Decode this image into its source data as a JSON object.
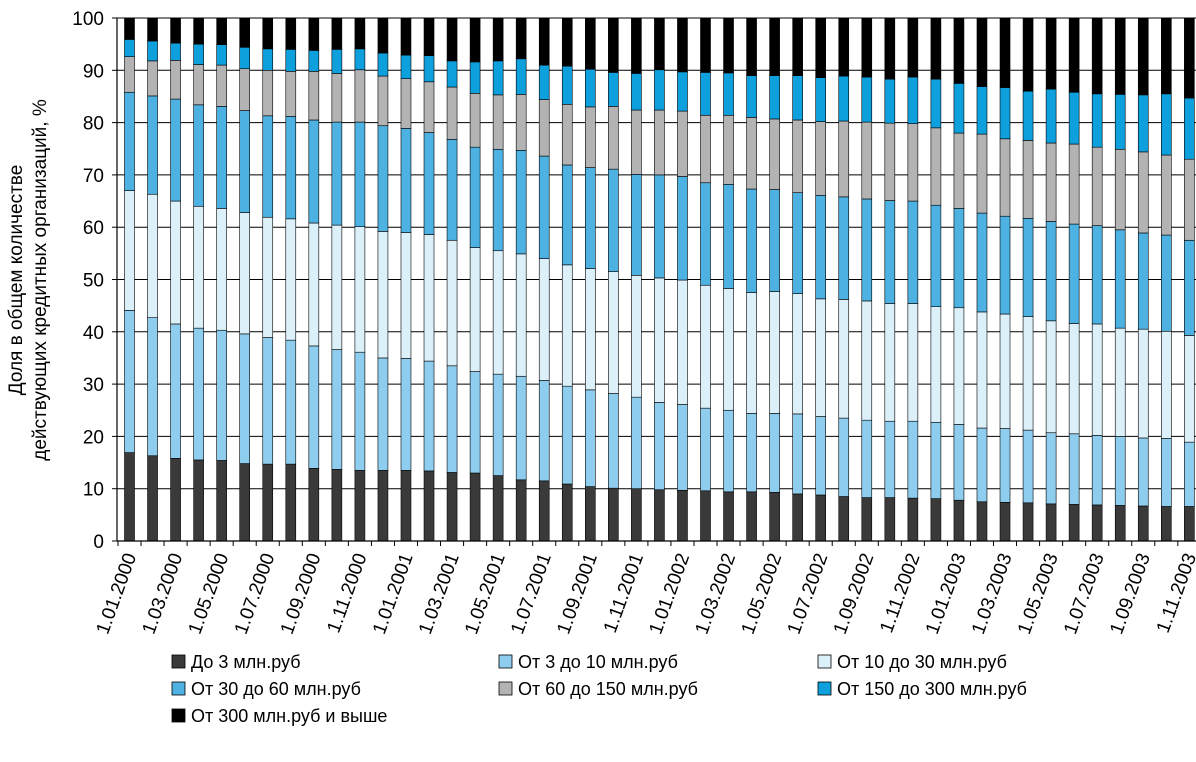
{
  "chart_data": {
    "type": "bar",
    "stacked": true,
    "title": "",
    "ylabel_lines": [
      "Доля в общем количестве",
      "действующих кредитных организаций, %"
    ],
    "ylim": [
      0,
      100
    ],
    "y_ticks": [
      "0",
      "10",
      "20",
      "30",
      "40",
      "50",
      "60",
      "70",
      "80",
      "90",
      "100"
    ],
    "grid": "horizontal",
    "legend_position": "bottom",
    "x_tick_labels": [
      "1.01.2000",
      "1.03.2000",
      "1.05.2000",
      "1.07.2000",
      "1.09.2000",
      "1.11.2000",
      "1.01.2001",
      "1.03.2001",
      "1.05.2001",
      "1.07.2001",
      "1.09.2001",
      "1.11.2001",
      "1.01.2002",
      "1.03.2002",
      "1.05.2002",
      "1.07.2002",
      "1.09.2002",
      "1.11.2002",
      "1.01.2003",
      "1.03.2003",
      "1.05.2003",
      "1.07.2003",
      "1.09.2003",
      "1.11.2003"
    ],
    "categories": [
      "1.01.2000",
      "1.02.2000",
      "1.03.2000",
      "1.04.2000",
      "1.05.2000",
      "1.06.2000",
      "1.07.2000",
      "1.08.2000",
      "1.09.2000",
      "1.10.2000",
      "1.11.2000",
      "1.12.2000",
      "1.01.2001",
      "1.02.2001",
      "1.03.2001",
      "1.04.2001",
      "1.05.2001",
      "1.06.2001",
      "1.07.2001",
      "1.08.2001",
      "1.09.2001",
      "1.10.2001",
      "1.11.2001",
      "1.12.2001",
      "1.01.2002",
      "1.02.2002",
      "1.03.2002",
      "1.04.2002",
      "1.05.2002",
      "1.06.2002",
      "1.07.2002",
      "1.08.2002",
      "1.09.2002",
      "1.10.2002",
      "1.11.2002",
      "1.12.2002",
      "1.01.2003",
      "1.02.2003",
      "1.03.2003",
      "1.04.2003",
      "1.05.2003",
      "1.06.2003",
      "1.07.2003",
      "1.08.2003",
      "1.09.2003",
      "1.10.2003",
      "1.11.2003"
    ],
    "series": [
      {
        "name": "До 3 млн.руб",
        "color": "#3a3a3a",
        "values": [
          16.9,
          16.3,
          15.8,
          15.5,
          15.4,
          14.8,
          14.7,
          14.7,
          13.9,
          13.7,
          13.5,
          13.5,
          13.5,
          13.4,
          13.1,
          13.0,
          12.5,
          11.7,
          11.5,
          10.9,
          10.4,
          10.1,
          10.0,
          9.8,
          9.7,
          9.6,
          9.4,
          9.4,
          9.3,
          9.0,
          8.8,
          8.5,
          8.3,
          8.3,
          8.2,
          8.1,
          7.8,
          7.5,
          7.4,
          7.3,
          7.1,
          7.0,
          6.9,
          6.8,
          6.7,
          6.6,
          6.6
        ]
      },
      {
        "name": "От 3 до 10 млн.руб",
        "color": "#8fcdee",
        "values": [
          27.2,
          26.4,
          25.7,
          25.2,
          24.9,
          24.8,
          24.2,
          23.7,
          23.4,
          22.9,
          22.6,
          21.5,
          21.4,
          21.0,
          20.4,
          19.4,
          19.4,
          19.8,
          19.2,
          18.7,
          18.5,
          18.1,
          17.5,
          16.7,
          16.4,
          15.8,
          15.6,
          15.0,
          15.1,
          15.3,
          15.0,
          15.0,
          14.8,
          14.6,
          14.7,
          14.6,
          14.5,
          14.1,
          14.1,
          13.9,
          13.6,
          13.5,
          13.3,
          13.2,
          13.0,
          13.0,
          12.3
        ]
      },
      {
        "name": "От 10 до 30 млн.руб",
        "color": "#dcf0fa",
        "values": [
          22.9,
          23.6,
          23.5,
          23.3,
          23.3,
          23.2,
          23.0,
          23.2,
          23.5,
          23.8,
          24.0,
          24.2,
          24.1,
          24.2,
          24.0,
          23.7,
          23.6,
          23.4,
          23.3,
          23.2,
          23.2,
          23.3,
          23.3,
          23.8,
          23.8,
          23.5,
          23.3,
          23.1,
          23.3,
          23.0,
          22.5,
          22.7,
          22.8,
          22.5,
          22.5,
          22.1,
          22.3,
          22.2,
          21.9,
          21.7,
          21.4,
          21.1,
          21.3,
          20.7,
          20.8,
          20.5,
          20.4
        ]
      },
      {
        "name": "От 30  до 60 млн.руб",
        "color": "#4db1e1",
        "values": [
          18.8,
          18.8,
          19.5,
          19.4,
          19.5,
          19.5,
          19.4,
          19.6,
          19.7,
          19.7,
          20.0,
          20.2,
          19.9,
          19.5,
          19.3,
          19.2,
          19.4,
          19.8,
          19.6,
          19.1,
          19.3,
          19.6,
          19.3,
          19.7,
          19.8,
          19.6,
          19.9,
          19.8,
          19.5,
          19.3,
          19.8,
          19.6,
          19.5,
          19.7,
          19.6,
          19.4,
          19.0,
          18.9,
          18.7,
          18.8,
          19.0,
          19.0,
          18.8,
          18.8,
          18.4,
          18.4,
          18.2
        ]
      },
      {
        "name": "От 60  до 150 млн.руб",
        "color": "#b3b3b3",
        "values": [
          6.8,
          6.7,
          7.4,
          7.7,
          7.9,
          8.0,
          8.7,
          8.6,
          9.3,
          9.3,
          10.0,
          9.5,
          9.5,
          9.7,
          10.0,
          10.3,
          10.4,
          10.7,
          10.8,
          11.6,
          11.6,
          12.0,
          12.3,
          12.4,
          12.5,
          12.9,
          13.2,
          13.7,
          13.5,
          13.9,
          14.1,
          14.5,
          14.7,
          14.8,
          14.8,
          14.8,
          14.4,
          15.1,
          14.8,
          14.9,
          15.0,
          15.3,
          15.0,
          15.4,
          15.5,
          15.3,
          15.5
        ]
      },
      {
        "name": "От 150 до 300 млн.руб",
        "color": "#0ea0dd",
        "values": [
          3.3,
          3.8,
          3.3,
          3.9,
          3.9,
          4.1,
          4.1,
          4.2,
          4.0,
          4.6,
          4.0,
          4.4,
          4.5,
          5.0,
          5.0,
          6.0,
          6.5,
          6.8,
          6.6,
          7.3,
          7.2,
          6.5,
          7.0,
          7.7,
          7.5,
          8.2,
          8.1,
          8.0,
          8.3,
          8.5,
          8.4,
          8.6,
          8.6,
          8.4,
          8.9,
          9.3,
          9.5,
          9.1,
          9.8,
          9.4,
          10.3,
          9.9,
          10.2,
          10.5,
          10.9,
          11.7,
          11.7
        ]
      },
      {
        "name": "От 300 млн.руб и выше",
        "color": "#000000",
        "values": [
          4.1,
          4.4,
          4.8,
          5.0,
          5.1,
          5.6,
          5.9,
          6.0,
          6.2,
          6.0,
          5.9,
          6.7,
          7.1,
          7.2,
          8.2,
          8.4,
          8.2,
          7.8,
          9.0,
          9.2,
          9.8,
          10.4,
          10.6,
          9.9,
          10.3,
          10.4,
          10.5,
          11.0,
          11.0,
          11.0,
          11.4,
          11.1,
          11.3,
          11.7,
          11.3,
          11.7,
          12.5,
          13.1,
          13.3,
          14.0,
          13.6,
          14.2,
          14.5,
          14.6,
          14.7,
          14.5,
          15.3
        ]
      }
    ]
  }
}
